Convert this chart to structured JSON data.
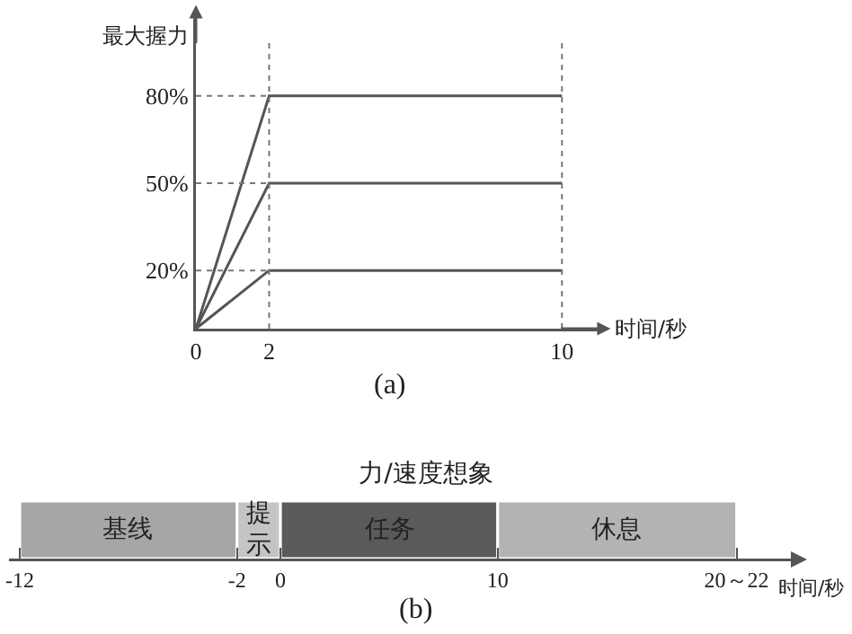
{
  "chart_data": [
    {
      "type": "line",
      "xlabel": "时间/秒",
      "ylabel": "最大握力",
      "x": [
        0,
        2,
        10
      ],
      "series": [
        {
          "color": "#555555",
          "values": [
            0,
            80,
            80
          ]
        },
        {
          "color": "#555555",
          "values": [
            0,
            50,
            50
          ]
        },
        {
          "color": "#555555",
          "values": [
            0,
            20,
            20
          ]
        }
      ],
      "xlim": [
        0,
        11
      ],
      "xticks": [
        0,
        2,
        10
      ],
      "ylim": [
        0,
        108
      ],
      "yticks": [
        {
          "value": 20,
          "label": "20%"
        },
        {
          "value": 50,
          "label": "50%"
        },
        {
          "value": 80,
          "label": "80%"
        }
      ],
      "ref_lines": [
        {
          "axis": "x",
          "value": 2,
          "color": "#777777",
          "line_style": "dotted"
        },
        {
          "axis": "x",
          "value": 10,
          "color": "#777777",
          "line_style": "dotted"
        },
        {
          "axis": "y",
          "value": 20,
          "color": "#777777",
          "line_style": "dotted"
        },
        {
          "axis": "y",
          "value": 50,
          "color": "#777777",
          "line_style": "dotted"
        },
        {
          "axis": "y",
          "value": 80,
          "color": "#777777",
          "line_style": "dotted"
        }
      ],
      "marker": "none",
      "line_style": "solid",
      "grid": false,
      "annotations": [
        "(a)"
      ]
    },
    {
      "type": "bar",
      "orientation": "horizontal",
      "title": "力/速度想象",
      "xlabel": "时间/秒",
      "categories": [
        null
      ],
      "series": [
        {
          "name": "基线",
          "color": "#a6a6a6",
          "values": [
            10
          ],
          "base": [
            -12
          ]
        },
        {
          "name": "提示",
          "color": "#c4c4c4",
          "values": [
            2
          ],
          "base": [
            -2
          ]
        },
        {
          "name": "任务",
          "color": "#5a5a5a",
          "values": [
            10
          ],
          "base": [
            0
          ]
        },
        {
          "name": "休息",
          "color": "#b3b3b3",
          "values": [
            11
          ],
          "base": [
            10
          ]
        }
      ],
      "xlim": [
        -12.5,
        23.5
      ],
      "xticks": [
        -12,
        -2,
        0,
        10,
        {
          "value": 21,
          "label": "20～22"
        }
      ],
      "tick_labels": "x",
      "grid": false,
      "annotations": [
        "(b)"
      ]
    }
  ]
}
